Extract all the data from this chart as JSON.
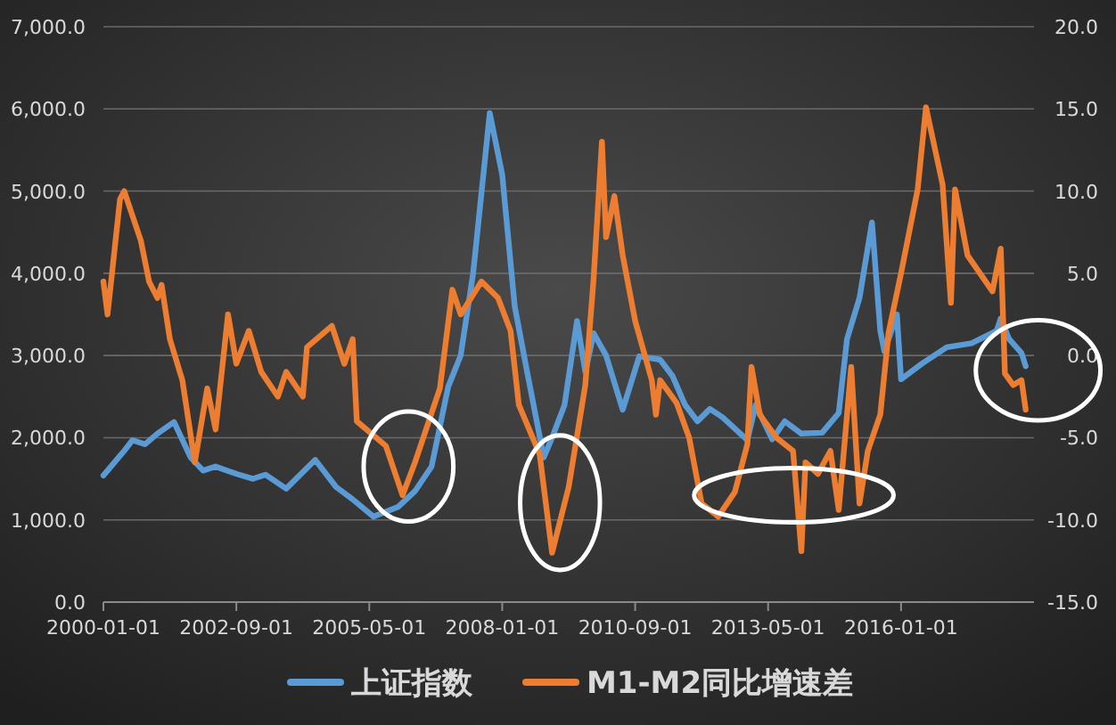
{
  "chart_data": {
    "type": "line",
    "series": [
      {
        "name": "上证指数",
        "color": "#5b9bd5",
        "x": [
          "2000-01",
          "2000-06",
          "2000-08",
          "2000-11",
          "2001-02",
          "2001-06",
          "2001-10",
          "2002-01",
          "2002-04",
          "2002-09",
          "2003-01",
          "2003-04",
          "2003-09",
          "2004-04",
          "2004-09",
          "2005-01",
          "2005-06",
          "2005-12",
          "2006-04",
          "2006-08",
          "2006-12",
          "2007-03",
          "2007-06",
          "2007-10",
          "2008-01",
          "2008-04",
          "2008-07",
          "2008-11",
          "2009-01",
          "2009-04",
          "2009-07",
          "2009-09",
          "2009-11",
          "2010-02",
          "2010-06",
          "2010-10",
          "2011-03",
          "2011-06",
          "2011-09",
          "2011-12",
          "2012-03",
          "2012-06",
          "2012-12",
          "2013-02",
          "2013-06",
          "2013-09",
          "2014-01",
          "2014-06",
          "2014-10",
          "2014-12",
          "2015-03",
          "2015-06",
          "2015-08",
          "2015-09",
          "2015-12",
          "2016-01",
          "2016-06",
          "2016-12",
          "2017-06",
          "2017-12",
          "2018-01",
          "2018-03",
          "2018-06",
          "2018-07"
        ],
        "values": [
          1540,
          1840,
          1970,
          1920,
          2050,
          2190,
          1760,
          1600,
          1650,
          1560,
          1500,
          1550,
          1380,
          1730,
          1400,
          1250,
          1040,
          1160,
          1350,
          1650,
          2620,
          3000,
          4000,
          5950,
          5200,
          3600,
          2800,
          1760,
          2000,
          2400,
          3420,
          2800,
          3270,
          3000,
          2340,
          2990,
          2950,
          2750,
          2400,
          2200,
          2350,
          2250,
          1970,
          2400,
          1980,
          2200,
          2050,
          2060,
          2300,
          3200,
          3700,
          4620,
          3300,
          3050,
          3500,
          2710,
          2900,
          3100,
          3150,
          3300,
          3450,
          3200,
          3030,
          2870
        ]
      },
      {
        "name": "M1-M2同比增速差",
        "color": "#ed7d31",
        "axis": "y2",
        "x": [
          "2000-01",
          "2000-02",
          "2000-05",
          "2000-06",
          "2000-10",
          "2000-12",
          "2001-02",
          "2001-03",
          "2001-05",
          "2001-08",
          "2001-11",
          "2002-02",
          "2002-04",
          "2002-07",
          "2002-09",
          "2002-12",
          "2003-03",
          "2003-07",
          "2003-09",
          "2004-01",
          "2004-02",
          "2004-08",
          "2004-11",
          "2005-01",
          "2005-02",
          "2005-09",
          "2006-01",
          "2006-04",
          "2006-10",
          "2007-01",
          "2007-03",
          "2007-08",
          "2007-12",
          "2008-03",
          "2008-05",
          "2008-10",
          "2009-01",
          "2009-05",
          "2009-09",
          "2009-11",
          "2010-01",
          "2010-02",
          "2010-04",
          "2010-06",
          "2010-09",
          "2011-01",
          "2011-02",
          "2011-03",
          "2011-07",
          "2011-10",
          "2012-01",
          "2012-05",
          "2012-09",
          "2012-12",
          "2013-01",
          "2013-03",
          "2013-07",
          "2013-11",
          "2014-01",
          "2014-02",
          "2014-05",
          "2014-08",
          "2014-10",
          "2015-01",
          "2015-03",
          "2015-05",
          "2015-08",
          "2015-10",
          "2016-01",
          "2016-05",
          "2016-07",
          "2016-11",
          "2017-01",
          "2017-02",
          "2017-05",
          "2017-11",
          "2018-01",
          "2018-02",
          "2018-04",
          "2018-06",
          "2018-07"
        ],
        "values": [
          4.5,
          2.5,
          9.5,
          10,
          7,
          4.5,
          3.5,
          4.3,
          1,
          -1.5,
          -6.5,
          -2,
          -4.5,
          2.5,
          -0.5,
          1.5,
          -1,
          -2.5,
          -1,
          -2.5,
          0.5,
          1.8,
          -0.5,
          1,
          -4,
          -5.5,
          -8.5,
          -6.5,
          -2,
          4,
          2.5,
          4.5,
          3.5,
          1.5,
          -3,
          -6,
          -12,
          -8,
          -1.8,
          4.7,
          13,
          7.2,
          9.7,
          6.1,
          2.1,
          -1.5,
          -3.6,
          -1.5,
          -2.9,
          -5,
          -9,
          -9.8,
          -8.3,
          -5.4,
          -0.7,
          -3.6,
          -5,
          -5.8,
          -11.9,
          -6.5,
          -7.2,
          -5.8,
          -9.4,
          -0.7,
          -9,
          -5.8,
          -3.6,
          1.4,
          5,
          10.1,
          15.1,
          10.4,
          3.2,
          10.1,
          6.1,
          3.9,
          6.5,
          -1.1,
          -1.8,
          -1.5,
          -3.3
        ]
      }
    ],
    "xlim": [
      "2000-01-01",
      "2018-09-01"
    ],
    "xticks": [
      "2000-01-01",
      "2002-09-01",
      "2005-05-01",
      "2008-01-01",
      "2010-09-01",
      "2013-05-01",
      "2016-01-01"
    ],
    "ylim": [
      0,
      7000
    ],
    "yticks": [
      {
        "value": 0,
        "label": "0.0"
      },
      {
        "value": 1000,
        "label": "1,000.0"
      },
      {
        "value": 2000,
        "label": "2,000.0"
      },
      {
        "value": 3000,
        "label": "3,000.0"
      },
      {
        "value": 4000,
        "label": "4,000.0"
      },
      {
        "value": 5000,
        "label": "5,000.0"
      },
      {
        "value": 6000,
        "label": "6,000.0"
      },
      {
        "value": 7000,
        "label": "7,000.0"
      }
    ],
    "y2lim": [
      -15,
      20
    ],
    "y2ticks": [
      {
        "value": -15,
        "label": "-15.0"
      },
      {
        "value": -10,
        "label": "-10.0"
      },
      {
        "value": -5,
        "label": "-5.0"
      },
      {
        "value": 0,
        "label": "0.0"
      },
      {
        "value": 5,
        "label": "5.0"
      },
      {
        "value": 10,
        "label": "10.0"
      },
      {
        "value": 15,
        "label": "15.0"
      },
      {
        "value": 20,
        "label": "20.0"
      }
    ],
    "grid": "y",
    "legend": "bottom"
  }
}
